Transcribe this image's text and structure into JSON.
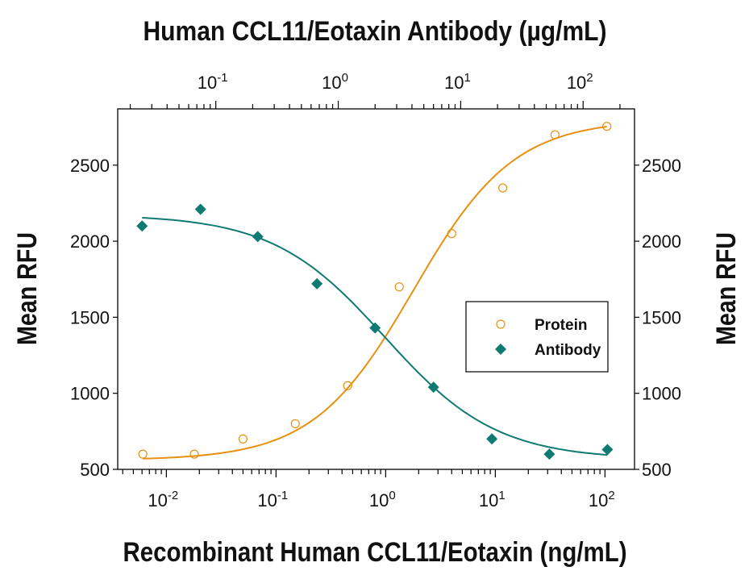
{
  "chart_data": {
    "type": "scatter",
    "title": "",
    "xlabel": "Recombinant Human CCL11/Eotaxin (ng/mL)",
    "x2label": "Human CCL11/Eotaxin Antibody (µg/mL)",
    "ylabel": "Mean RFU",
    "y2label": "Mean RFU",
    "xscale": "log",
    "x2scale": "log",
    "xlim": [
      0.0036,
      186
    ],
    "x2lim": [
      0.0158,
      263
    ],
    "ylim": [
      500,
      2870
    ],
    "grid": false,
    "legend_position": "center-right",
    "x_ticks": [
      {
        "v": 0.01,
        "e": "-2"
      },
      {
        "v": 0.1,
        "e": "-1"
      },
      {
        "v": 1,
        "e": "0"
      },
      {
        "v": 10,
        "e": "1"
      },
      {
        "v": 100,
        "e": "2"
      }
    ],
    "x2_ticks": [
      {
        "v": 0.1,
        "e": "-1"
      },
      {
        "v": 1,
        "e": "0"
      },
      {
        "v": 10,
        "e": "1"
      },
      {
        "v": 100,
        "e": "2"
      }
    ],
    "y_ticks": [
      "500",
      "1000",
      "1500",
      "2000",
      "2500"
    ],
    "series": [
      {
        "name": "Protein",
        "axis": "bottom",
        "marker": "open-circle",
        "color": "#E8900F",
        "x": [
          0.0061,
          0.018,
          0.05,
          0.15,
          0.45,
          1.33,
          4.0,
          11.7,
          35,
          104
        ],
        "y": [
          600,
          600,
          700,
          800,
          1050,
          1700,
          2050,
          2350,
          2700,
          2755
        ],
        "fit": {
          "bottom": 560,
          "top": 2800,
          "ec50": 1.8,
          "hill": 0.95
        }
      },
      {
        "name": "Antibody",
        "axis": "top",
        "marker": "filled-diamond",
        "color": "#0E7A72",
        "x": [
          0.025,
          0.075,
          0.22,
          0.67,
          2.0,
          6.0,
          18,
          53,
          158
        ],
        "y": [
          2100,
          2210,
          2030,
          1720,
          1430,
          1040,
          700,
          600,
          630
        ],
        "fit": {
          "bottom": 565,
          "top": 2175,
          "ec50": 2.4,
          "hill": 0.95
        }
      }
    ]
  }
}
